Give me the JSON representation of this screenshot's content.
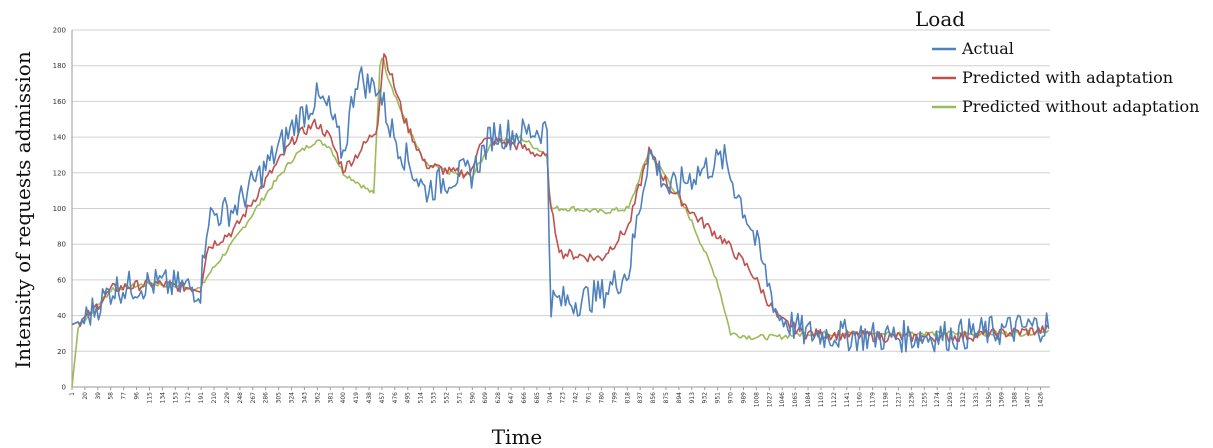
{
  "chart_data": {
    "type": "line",
    "title": "",
    "xlabel": "Time",
    "ylabel": "Intensity of requests admission",
    "legend_title": "Load",
    "legend_position": "top-right",
    "grid": true,
    "ylim": [
      0,
      200
    ],
    "yticks": [
      0,
      20,
      40,
      60,
      80,
      100,
      120,
      140,
      160,
      180,
      200
    ],
    "xlim": [
      1,
      1440
    ],
    "xticks": [
      1,
      20,
      39,
      58,
      77,
      96,
      115,
      134,
      153,
      172,
      191,
      210,
      229,
      248,
      267,
      286,
      305,
      324,
      343,
      362,
      381,
      400,
      419,
      438,
      457,
      476,
      495,
      514,
      533,
      552,
      571,
      590,
      609,
      628,
      647,
      666,
      685,
      704,
      723,
      742,
      761,
      780,
      799,
      818,
      837,
      856,
      875,
      894,
      913,
      932,
      951,
      970,
      989,
      1008,
      1027,
      1046,
      1065,
      1084,
      1103,
      1122,
      1141,
      1160,
      1179,
      1198,
      1217,
      1236,
      1255,
      1274,
      1293,
      1312,
      1331,
      1350,
      1369,
      1388,
      1407,
      1426
    ],
    "series": [
      {
        "name": "Actual",
        "color": "#4f81bd",
        "x": [
          1,
          20,
          60,
          120,
          190,
          200,
          240,
          290,
          330,
          360,
          380,
          400,
          420,
          440,
          450,
          470,
          490,
          520,
          560,
          590,
          620,
          660,
          700,
          705,
          740,
          780,
          820,
          850,
          880,
          920,
          960,
          1000,
          1040,
          1080,
          1200,
          1300,
          1400,
          1440
        ],
        "values": [
          35,
          38,
          55,
          58,
          55,
          95,
          100,
          125,
          148,
          162,
          155,
          130,
          175,
          168,
          170,
          145,
          130,
          110,
          118,
          120,
          142,
          142,
          145,
          48,
          48,
          52,
          65,
          132,
          110,
          120,
          128,
          90,
          40,
          30,
          28,
          29,
          33,
          35
        ]
      },
      {
        "name": "Predicted with adaptation",
        "color": "#c0504d",
        "x": [
          1,
          20,
          60,
          120,
          190,
          200,
          240,
          290,
          330,
          360,
          380,
          400,
          420,
          440,
          450,
          460,
          490,
          520,
          560,
          590,
          600,
          620,
          660,
          700,
          705,
          720,
          780,
          820,
          850,
          880,
          920,
          960,
          1000,
          1040,
          1080,
          1200,
          1300,
          1400,
          1440
        ],
        "values": [
          35,
          38,
          55,
          58,
          55,
          78,
          88,
          118,
          140,
          148,
          140,
          122,
          130,
          140,
          145,
          188,
          150,
          125,
          120,
          120,
          138,
          138,
          135,
          128,
          100,
          75,
          72,
          90,
          132,
          112,
          95,
          82,
          65,
          38,
          30,
          28,
          28,
          31,
          32
        ]
      },
      {
        "name": "Predicted without adaptation",
        "color": "#9bbb59",
        "x": [
          1,
          10,
          20,
          60,
          120,
          190,
          200,
          240,
          290,
          330,
          360,
          380,
          400,
          420,
          445,
          455,
          465,
          490,
          520,
          560,
          590,
          620,
          660,
          700,
          705,
          740,
          780,
          820,
          850,
          880,
          910,
          950,
          970,
          1000,
          1040,
          1080,
          1200,
          1300,
          1400,
          1440
        ],
        "values": [
          0,
          33,
          38,
          55,
          58,
          55,
          62,
          82,
          110,
          130,
          138,
          135,
          120,
          115,
          108,
          188,
          175,
          150,
          125,
          120,
          118,
          138,
          140,
          130,
          100,
          100,
          98,
          100,
          132,
          115,
          95,
          60,
          30,
          28,
          28,
          30,
          30,
          30,
          30,
          32
        ]
      }
    ]
  }
}
